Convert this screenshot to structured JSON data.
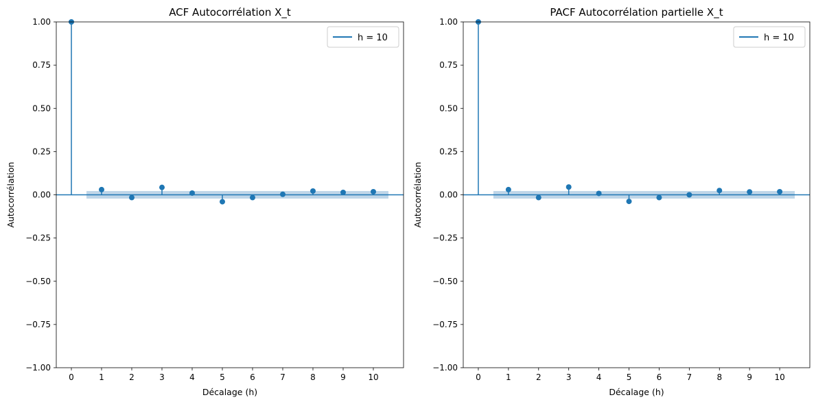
{
  "colors": {
    "stem": "#1f77b4",
    "confidence_band": "#b8d2e6",
    "background": "#ffffff",
    "axes": "#000000"
  },
  "chart_data": [
    {
      "type": "stem",
      "title": "ACF Autocorrélation X_t",
      "xlabel": "Décalage (h)",
      "ylabel": "Autocorrélation",
      "legend": "h = 10",
      "legend_position": "top-right",
      "x": [
        0,
        1,
        2,
        3,
        4,
        5,
        6,
        7,
        8,
        9,
        10
      ],
      "values": [
        1.0,
        0.03,
        -0.016,
        0.043,
        0.01,
        -0.04,
        -0.016,
        0.003,
        0.022,
        0.014,
        0.018
      ],
      "confidence_band": {
        "x_start": 0.5,
        "x_end": 10.5,
        "lower": -0.014,
        "upper": 0.014
      },
      "xlim": [
        -0.5,
        11.0
      ],
      "ylim": [
        -1.0,
        1.0
      ],
      "xticks": [
        "0",
        "1",
        "2",
        "3",
        "4",
        "5",
        "6",
        "7",
        "8",
        "9",
        "10"
      ],
      "yticks": [
        "1.00",
        "0.75",
        "0.50",
        "0.25",
        "0.00",
        "−0.25",
        "−0.50",
        "−0.75",
        "−1.00"
      ],
      "ytick_values": [
        1.0,
        0.75,
        0.5,
        0.25,
        0.0,
        -0.25,
        -0.5,
        -0.75,
        -1.0
      ],
      "grid": false
    },
    {
      "type": "stem",
      "title": "PACF Autocorrélation partielle X_t",
      "xlabel": "Décalage (h)",
      "ylabel": "Autocorrélation",
      "legend": "h = 10",
      "legend_position": "top-right",
      "x": [
        0,
        1,
        2,
        3,
        4,
        5,
        6,
        7,
        8,
        9,
        10
      ],
      "values": [
        1.0,
        0.03,
        -0.016,
        0.045,
        0.008,
        -0.038,
        -0.016,
        0.0,
        0.025,
        0.017,
        0.018
      ],
      "confidence_band": {
        "x_start": 0.5,
        "x_end": 10.5,
        "lower": -0.014,
        "upper": 0.014
      },
      "xlim": [
        -0.5,
        11.0
      ],
      "ylim": [
        -1.0,
        1.0
      ],
      "xticks": [
        "0",
        "1",
        "2",
        "3",
        "4",
        "5",
        "6",
        "7",
        "8",
        "9",
        "10"
      ],
      "yticks": [
        "1.00",
        "0.75",
        "0.50",
        "0.25",
        "0.00",
        "−0.25",
        "−0.50",
        "−0.75",
        "−1.00"
      ],
      "ytick_values": [
        1.0,
        0.75,
        0.5,
        0.25,
        0.0,
        -0.25,
        -0.5,
        -0.75,
        -1.0
      ],
      "grid": false
    }
  ]
}
